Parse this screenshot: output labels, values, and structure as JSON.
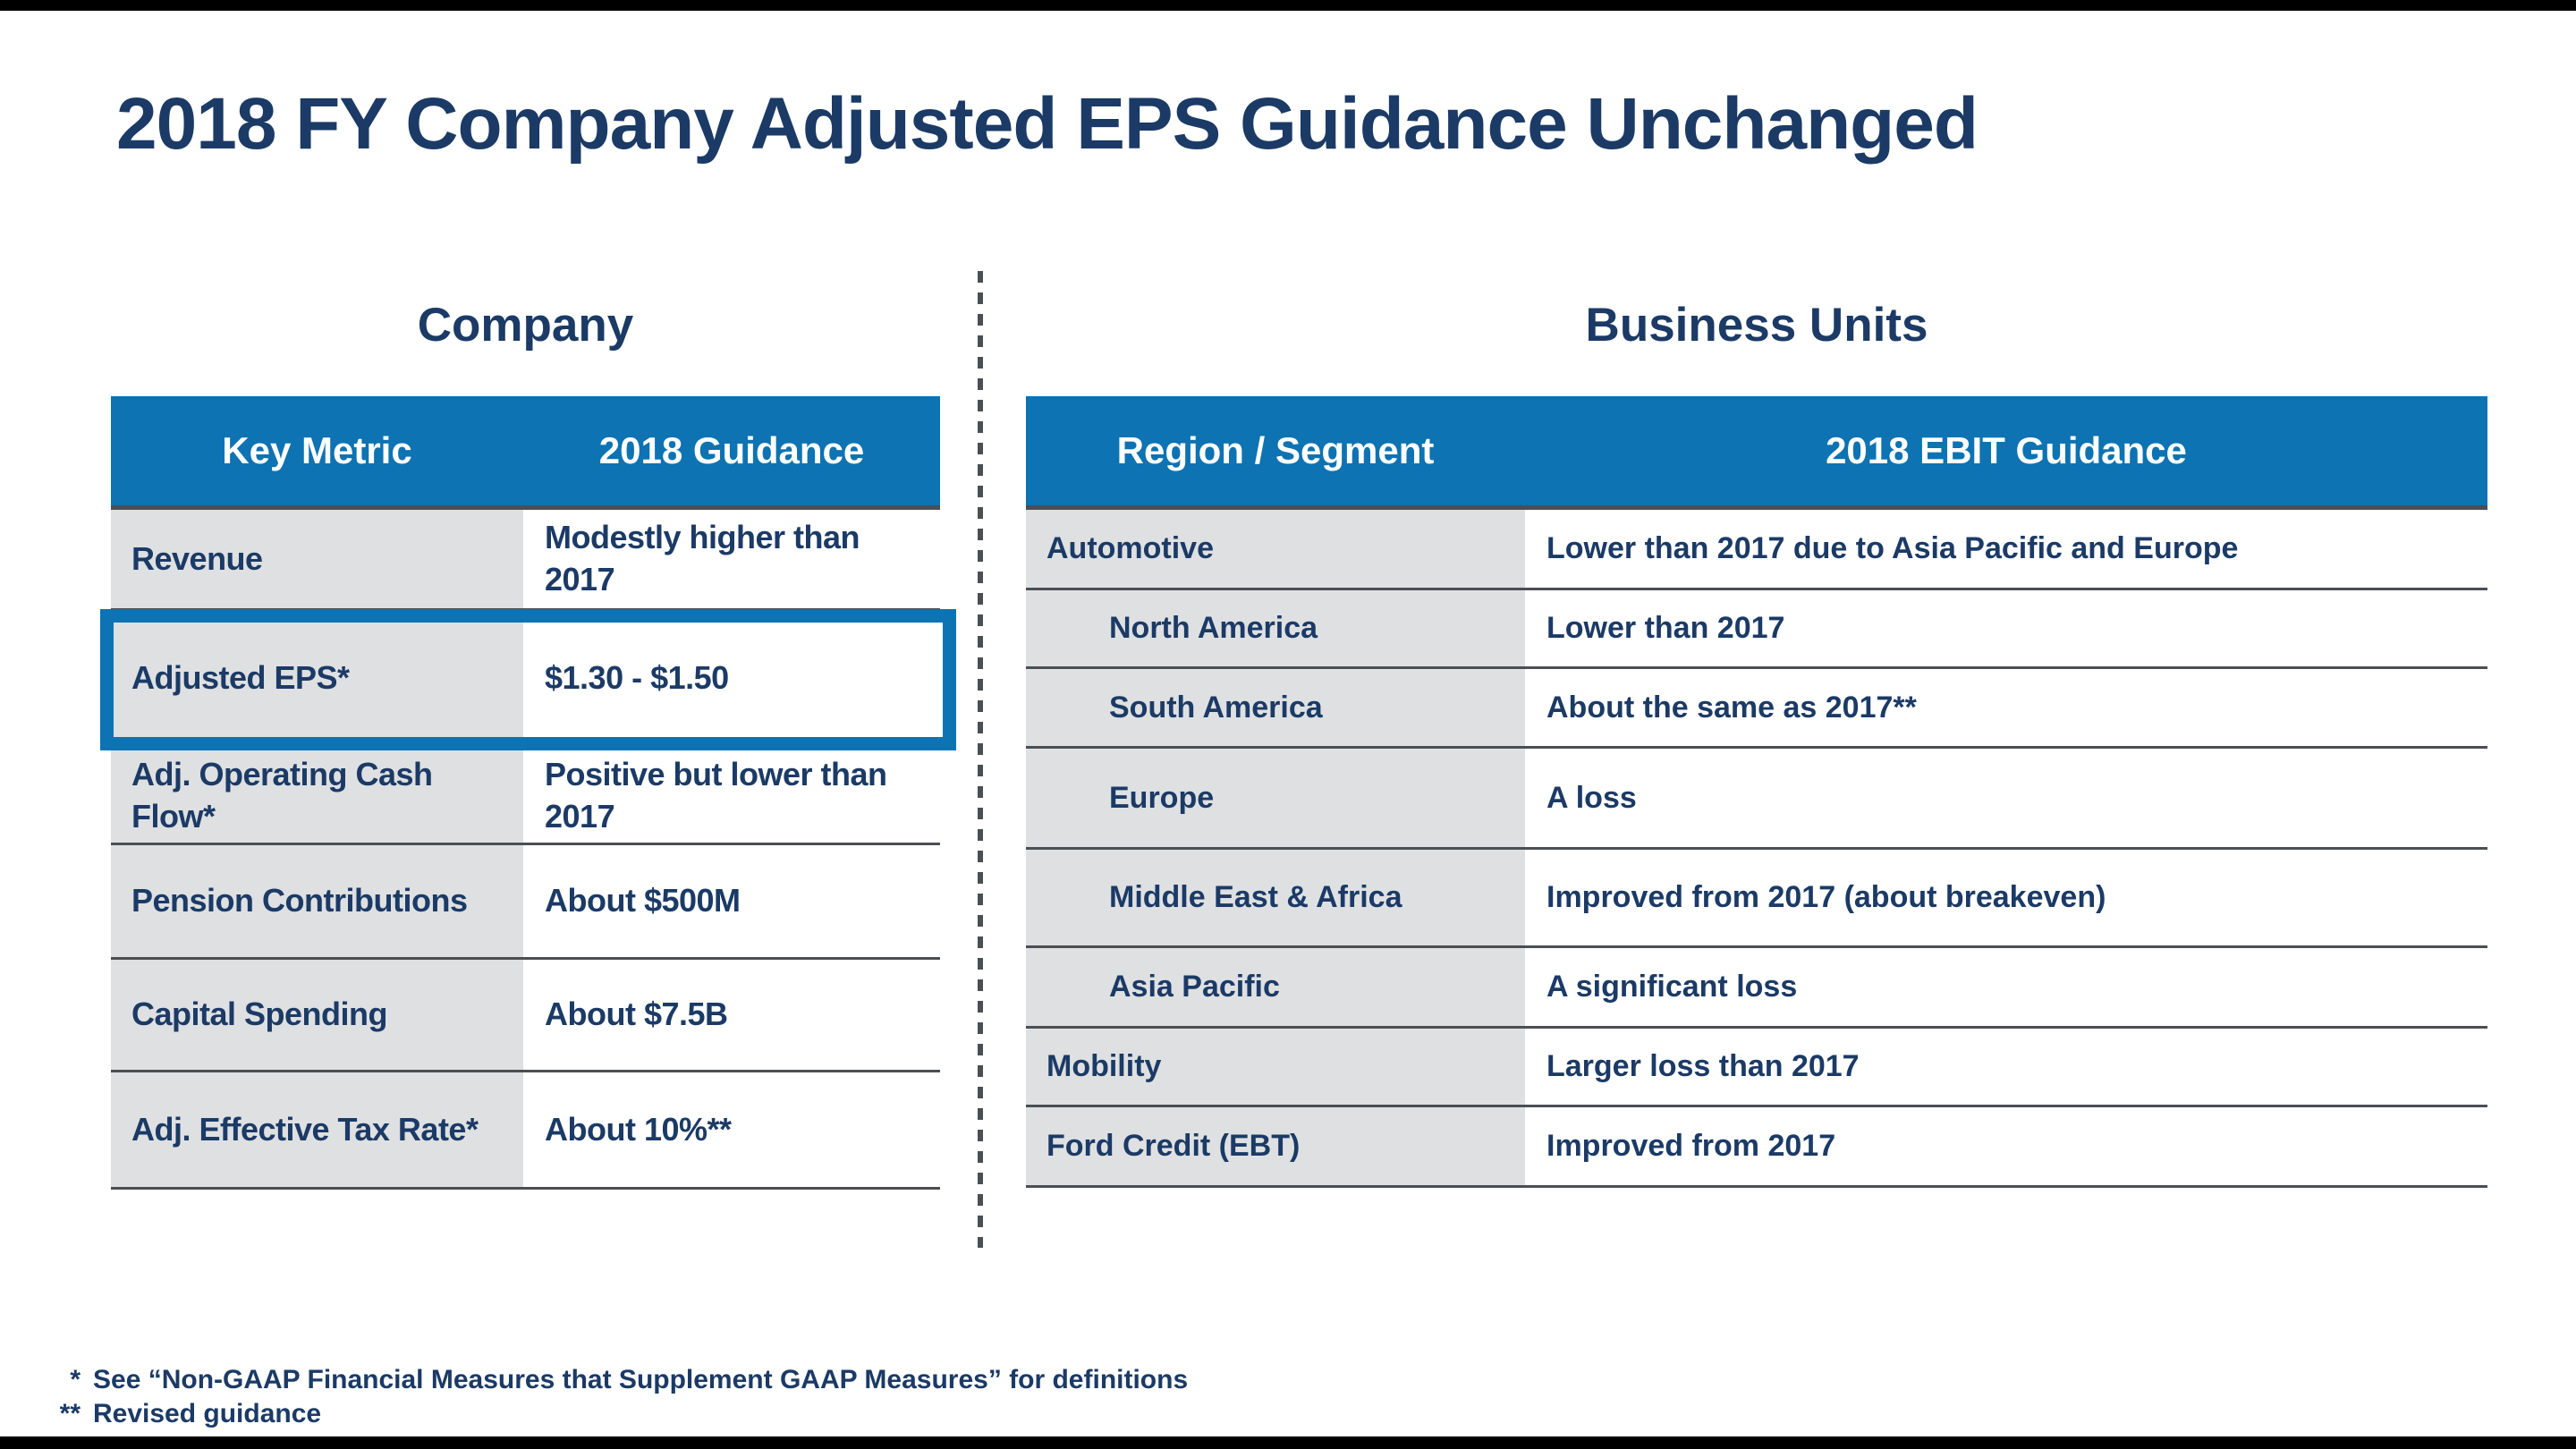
{
  "slide": {
    "title": "2018 FY Company Adjusted EPS Guidance Unchanged",
    "footnotes": [
      {
        "marker": "*",
        "text": "See “Non-GAAP Financial Measures that Supplement GAAP Measures” for definitions"
      },
      {
        "marker": "**",
        "text": "Revised guidance"
      }
    ]
  },
  "colors": {
    "header_blue": "#0D73B2",
    "highlight_border_blue": "#0D73B2",
    "navy_text": "#1B3A66",
    "cell_gray": "#DFE0E1",
    "separator_gray": "#4A4F54"
  },
  "company_table": {
    "heading": "Company",
    "columns": [
      "Key Metric",
      "2018 Guidance"
    ],
    "rows": [
      {
        "metric": "Revenue",
        "guidance": "Modestly higher than 2017",
        "highlighted": false
      },
      {
        "metric": "Adjusted EPS*",
        "guidance": "$1.30 - $1.50",
        "highlighted": true
      },
      {
        "metric": "Adj. Operating Cash Flow*",
        "guidance": "Positive but lower than 2017",
        "highlighted": false
      },
      {
        "metric": "Pension Contributions",
        "guidance": "About $500M",
        "highlighted": false
      },
      {
        "metric": "Capital Spending",
        "guidance": "About $7.5B",
        "highlighted": false
      },
      {
        "metric": "Adj. Effective Tax Rate*",
        "guidance": "About 10%**",
        "highlighted": false
      }
    ]
  },
  "business_units_table": {
    "heading": "Business Units",
    "columns": [
      "Region / Segment",
      "2018 EBIT Guidance"
    ],
    "rows": [
      {
        "segment": "Automotive",
        "guidance": "Lower than 2017 due to Asia Pacific and Europe",
        "indent": false
      },
      {
        "segment": "North America",
        "guidance": "Lower than 2017",
        "indent": true
      },
      {
        "segment": "South America",
        "guidance": "About the same as 2017**",
        "indent": true
      },
      {
        "segment": "Europe",
        "guidance": "A loss",
        "indent": true
      },
      {
        "segment": "Middle East & Africa",
        "guidance": "Improved from 2017 (about breakeven)",
        "indent": true
      },
      {
        "segment": "Asia Pacific",
        "guidance": "A significant loss",
        "indent": true
      },
      {
        "segment": "Mobility",
        "guidance": "Larger loss than 2017",
        "indent": false
      },
      {
        "segment": "Ford Credit (EBT)",
        "guidance": "Improved from 2017",
        "indent": false
      }
    ]
  }
}
